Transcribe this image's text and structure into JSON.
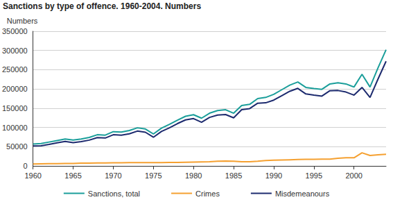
{
  "chart_data": {
    "type": "line",
    "title": "Sanctions by type of offence. 1960-2004. Numbers",
    "y_label": "Numbers",
    "x": [
      1960,
      1961,
      1962,
      1963,
      1964,
      1965,
      1966,
      1967,
      1968,
      1969,
      1970,
      1971,
      1972,
      1973,
      1974,
      1975,
      1976,
      1977,
      1978,
      1979,
      1980,
      1981,
      1982,
      1983,
      1984,
      1985,
      1986,
      1987,
      1988,
      1989,
      1990,
      1991,
      1992,
      1993,
      1994,
      1995,
      1996,
      1997,
      1998,
      1999,
      2000,
      2001,
      2002,
      2003,
      2004
    ],
    "series": [
      {
        "name": "Sanctions, total",
        "color": "#1a9e9a",
        "values": [
          57000,
          58000,
          62000,
          66000,
          70000,
          67000,
          70000,
          74000,
          81000,
          80000,
          89000,
          88000,
          92000,
          99000,
          96000,
          83000,
          98000,
          108000,
          119000,
          129000,
          133000,
          124000,
          137000,
          144000,
          146000,
          137000,
          157000,
          160000,
          175000,
          178000,
          186000,
          198000,
          210000,
          218000,
          204000,
          201000,
          199000,
          213000,
          216000,
          213000,
          205000,
          238000,
          205000,
          255000,
          302000
        ]
      },
      {
        "name": "Crimes",
        "color": "#f5a030",
        "values": [
          5000,
          5500,
          6000,
          6000,
          6500,
          6500,
          7000,
          7000,
          7500,
          7500,
          8000,
          8000,
          8500,
          8500,
          8500,
          8500,
          8500,
          9000,
          9000,
          9500,
          10000,
          10500,
          11000,
          12000,
          12500,
          12000,
          11000,
          11000,
          12000,
          14000,
          15000,
          15500,
          16000,
          16500,
          17000,
          17000,
          17500,
          17500,
          20000,
          21000,
          21000,
          34000,
          27000,
          29000,
          30000
        ]
      },
      {
        "name": "Misdemeanours",
        "color": "#1c2a6e",
        "values": [
          52000,
          52500,
          56000,
          60000,
          63500,
          60500,
          63000,
          67000,
          73500,
          72500,
          81000,
          80000,
          83500,
          90500,
          87500,
          74500,
          89500,
          99000,
          110000,
          119500,
          123000,
          113500,
          126000,
          132000,
          133500,
          125000,
          146000,
          149000,
          163000,
          164000,
          171000,
          182500,
          194000,
          201500,
          187000,
          184000,
          181500,
          195500,
          196000,
          192000,
          184000,
          204000,
          178000,
          226000,
          272000
        ]
      }
    ],
    "xlim": [
      1960,
      2004
    ],
    "xticks": [
      1960,
      1965,
      1970,
      1975,
      1980,
      1985,
      1990,
      1995,
      2000
    ],
    "ylim": [
      0,
      350000
    ],
    "yticks": [
      0,
      50000,
      100000,
      150000,
      200000,
      250000,
      300000,
      350000
    ],
    "grid": true,
    "legend": "bottom"
  }
}
